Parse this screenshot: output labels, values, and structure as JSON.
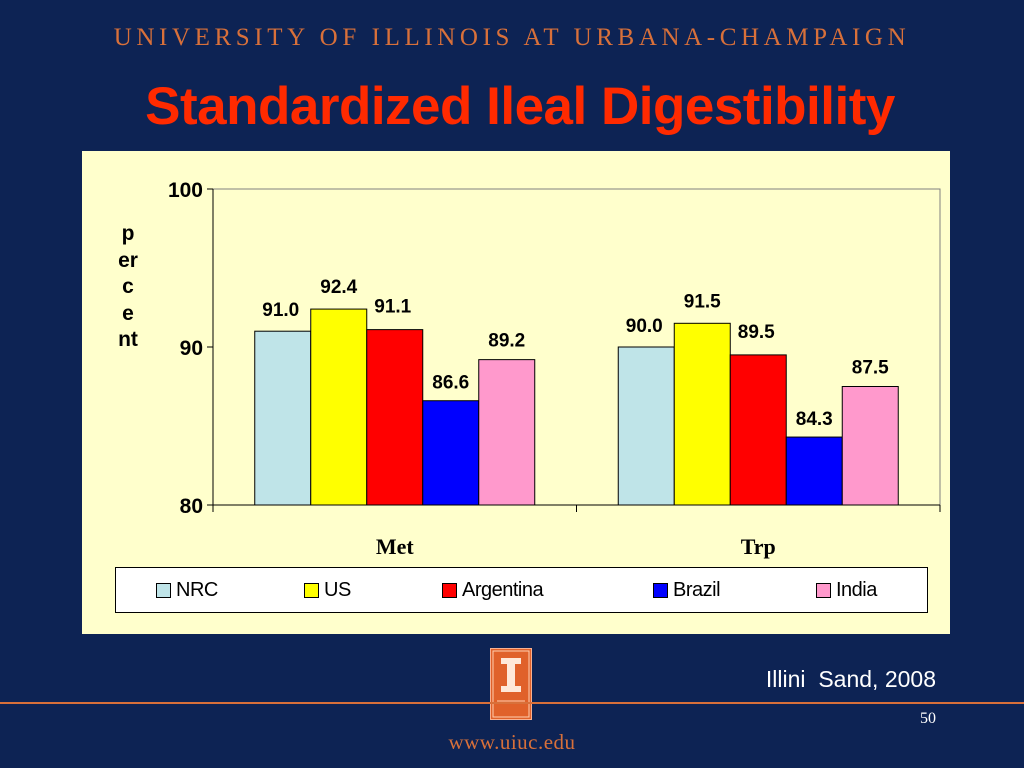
{
  "header": {
    "institution": "UNIVERSITY OF ILLINOIS AT URBANA-CHAMPAIGN"
  },
  "slide": {
    "title": "Standardized Ileal Digestibility"
  },
  "chart_data": {
    "type": "bar",
    "title": "",
    "xlabel": "",
    "ylabel": "percent",
    "ylim": [
      80,
      100
    ],
    "yticks": [
      "80",
      "90",
      "100"
    ],
    "categories": [
      "Met",
      "Trp"
    ],
    "series": [
      {
        "name": "NRC",
        "color": "#bfe4e8",
        "values": [
          91.0,
          90.0
        ],
        "labels": [
          "91.0",
          "90.0"
        ]
      },
      {
        "name": "US",
        "color": "#ffff00",
        "values": [
          92.4,
          91.5
        ],
        "labels": [
          "92.4",
          "91.5"
        ]
      },
      {
        "name": "Argentina",
        "color": "#ff0000",
        "values": [
          91.1,
          89.5
        ],
        "labels": [
          "91.1",
          "89.5"
        ]
      },
      {
        "name": "Brazil",
        "color": "#0000ff",
        "values": [
          86.6,
          84.3
        ],
        "labels": [
          "86.6",
          "84.3"
        ]
      },
      {
        "name": "India",
        "color": "#ff99cc",
        "values": [
          89.2,
          87.5
        ],
        "labels": [
          "89.2",
          "87.5"
        ]
      }
    ],
    "legend_position": "bottom",
    "grid": false
  },
  "footer": {
    "citation": "Illini  Sand, 2008",
    "page_number": "50",
    "url": "www.uiuc.edu",
    "logo_icon": "illinois-block-i-logo-icon"
  }
}
